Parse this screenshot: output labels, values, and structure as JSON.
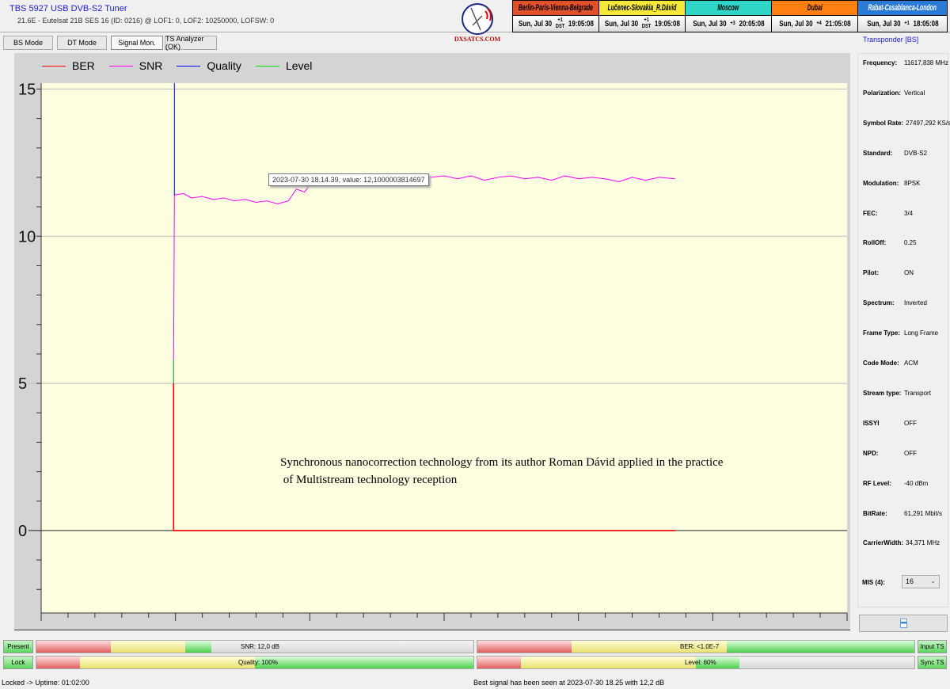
{
  "header": {
    "title": "TBS 5927 USB DVB-S2 Tuner",
    "subtitle": "21.6E - Eutelsat 21B  SES 16 (ID: 0216) @ LOF1: 0, LOF2: 10250000, LOFSW: 0",
    "logo_text": "DXSATCS.COM"
  },
  "tabs": [
    {
      "label": "BS Mode"
    },
    {
      "label": "DT Mode"
    },
    {
      "label": "Signal Mon.",
      "active": true
    },
    {
      "label": "TS Analyzer (OK)"
    }
  ],
  "clocks": [
    {
      "city": "Berlin-Paris-Vienna-Belgrade",
      "date": "Sun, Jul 30",
      "offset": "+1",
      "dst": "DST",
      "time": "19:05:08",
      "bg": "#e0502a",
      "color": "#000"
    },
    {
      "city": "Lučenec-Slovakia_R.Dávid",
      "date": "Sun, Jul 30",
      "offset": "+1",
      "dst": "DST",
      "time": "19:05:08",
      "bg": "#f5e83a",
      "color": "#000"
    },
    {
      "city": "Moscow",
      "date": "Sun, Jul 30",
      "offset": "+3",
      "dst": "",
      "time": "20:05:08",
      "bg": "#2fd6c8",
      "color": "#000"
    },
    {
      "city": "Dubai",
      "date": "Sun, Jul 30",
      "offset": "+4",
      "dst": "",
      "time": "21:05:08",
      "bg": "#ff8010",
      "color": "#000"
    },
    {
      "city": "Rabat-Casablanca-London",
      "date": "Sun, Jul 30",
      "offset": "+1",
      "dst": "",
      "time": "18:05:08",
      "bg": "#2a7bd8",
      "color": "#fff"
    }
  ],
  "chart_data": {
    "type": "line",
    "legend": [
      {
        "name": "BER",
        "color": "#ff0000"
      },
      {
        "name": "SNR",
        "color": "#ff00ff"
      },
      {
        "name": "Quality",
        "color": "#0000ff"
      },
      {
        "name": "Level",
        "color": "#00dd00"
      }
    ],
    "legend_position": "top-left",
    "ylim": [
      -2.8,
      15.2
    ],
    "yticks": [
      "15",
      "10",
      "5",
      "0"
    ],
    "xlim": [
      0,
      30
    ],
    "grid": true,
    "series": [
      {
        "name": "SNR",
        "points": [
          [
            4.93,
            0
          ],
          [
            4.93,
            5.8
          ],
          [
            4.96,
            11.4
          ],
          [
            5.3,
            11.45
          ],
          [
            5.6,
            11.3
          ],
          [
            6,
            11.35
          ],
          [
            6.4,
            11.25
          ],
          [
            6.8,
            11.3
          ],
          [
            7.2,
            11.2
          ],
          [
            7.6,
            11.25
          ],
          [
            8,
            11.15
          ],
          [
            8.4,
            11.2
          ],
          [
            8.8,
            11.1
          ],
          [
            9.2,
            11.2
          ],
          [
            9.5,
            11.6
          ],
          [
            9.8,
            11.5
          ],
          [
            10.1,
            11.85
          ],
          [
            10.5,
            12.0
          ],
          [
            11,
            11.95
          ],
          [
            11.5,
            12.05
          ],
          [
            12,
            11.95
          ],
          [
            12.5,
            12.05
          ],
          [
            13,
            11.9
          ],
          [
            13.5,
            12.05
          ],
          [
            14,
            11.95
          ],
          [
            14.5,
            12.0
          ],
          [
            15,
            12.05
          ],
          [
            15.5,
            11.95
          ],
          [
            16,
            12.05
          ],
          [
            16.5,
            11.9
          ],
          [
            17,
            12.0
          ],
          [
            17.5,
            12.05
          ],
          [
            18,
            11.95
          ],
          [
            18.5,
            12.0
          ],
          [
            19,
            11.9
          ],
          [
            19.5,
            12.05
          ],
          [
            20,
            11.95
          ],
          [
            20.5,
            12.0
          ],
          [
            21,
            11.95
          ],
          [
            21.5,
            11.85
          ],
          [
            22,
            12.0
          ],
          [
            22.5,
            11.9
          ],
          [
            23,
            12.0
          ],
          [
            23.6,
            11.95
          ]
        ]
      },
      {
        "name": "Quality",
        "points": [
          [
            4.96,
            11.4
          ],
          [
            4.96,
            15.2
          ]
        ]
      },
      {
        "name": "BER",
        "points": [
          [
            4.93,
            5
          ],
          [
            4.93,
            0
          ],
          [
            23.6,
            0
          ]
        ]
      },
      {
        "name": "Level",
        "points": [
          [
            4.93,
            5.8
          ],
          [
            4.93,
            5.0
          ]
        ]
      }
    ],
    "tooltip": "2023-07-30 18.14.39, value: 12,1000003814697",
    "annotation": "Synchronous nanocorrection technology from its author Roman Dávid applied in the practice\n of Multistream technology reception"
  },
  "transponder": {
    "title": "Transponder [BS]",
    "fields": [
      {
        "label": "Frequency:",
        "value": "11617,838 MHz"
      },
      {
        "label": "Polarization:",
        "value": "Vertical"
      },
      {
        "label": "Symbol Rate:",
        "value": "27497,292 KS/s"
      },
      {
        "label": "Standard:",
        "value": "DVB-S2"
      },
      {
        "label": "Modulation:",
        "value": "8PSK"
      },
      {
        "label": "FEC:",
        "value": "3/4"
      },
      {
        "label": "RollOff:",
        "value": "0.25"
      },
      {
        "label": "Pilot:",
        "value": "ON"
      },
      {
        "label": "Spectrum:",
        "value": "Inverted"
      },
      {
        "label": "Frame Type:",
        "value": "Long Frame"
      },
      {
        "label": "Code Mode:",
        "value": "ACM"
      },
      {
        "label": "Stream type:",
        "value": "Transport"
      },
      {
        "label": "ISSYI",
        "value": "OFF"
      },
      {
        "label": "NPD:",
        "value": "OFF"
      },
      {
        "label": "RF Level:",
        "value": "-40 dBm"
      },
      {
        "label": "BitRate:",
        "value": "61,291 Mbit/s"
      },
      {
        "label": "CarrierWidth:",
        "value": "34,371 MHz"
      }
    ],
    "mis_label": "MIS (4):",
    "mis_value": "16"
  },
  "meters": {
    "present": "Present",
    "lock": "Lock",
    "input_ts": "Input TS",
    "sync_ts": "Sync TS",
    "snr": {
      "label": "SNR: 12,0 dB",
      "percent": 40
    },
    "ber": {
      "label": "BER: <1.0E-7",
      "percent": 100
    },
    "quality": {
      "label": "Quality: 100%",
      "percent": 100
    },
    "level": {
      "label": "Level: 60%",
      "percent": 60
    }
  },
  "status": {
    "left": "Locked -> Uptime: 01:02:00",
    "center": "Best signal has been seen at 2023-07-30 18.25 with 12,2 dB"
  }
}
